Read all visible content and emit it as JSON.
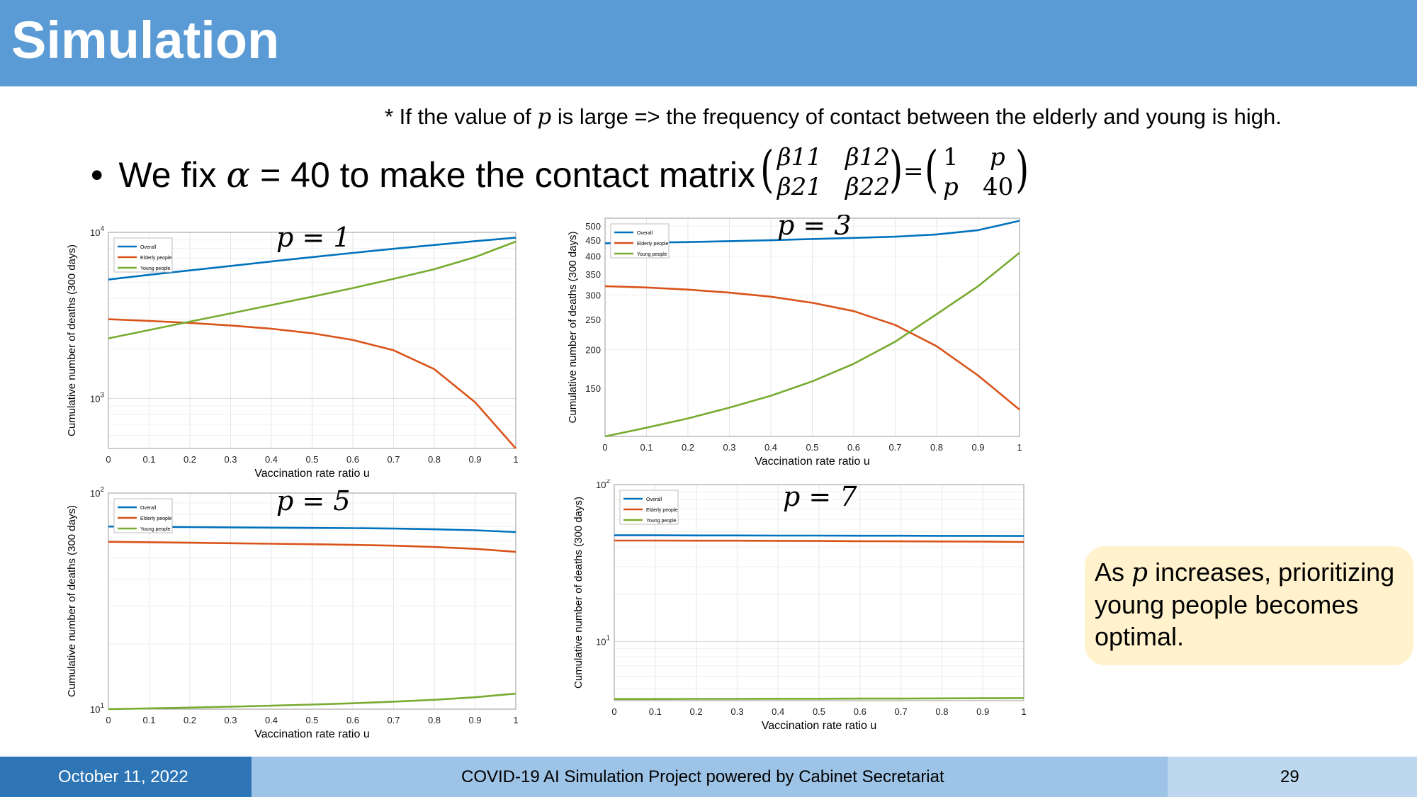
{
  "slide": {
    "title": "Simulation",
    "note_prefix": "* If the value of ",
    "note_var": "p",
    "note_suffix": " is large => the frequency of contact between the elderly and young is high.",
    "bullet_prefix": "We fix ",
    "bullet_var": "α",
    "bullet_suffix": " = 40 to make the contact matrix",
    "matrix": {
      "b11": "β11",
      "b12": "β12",
      "b21": "β21",
      "b22": "β22",
      "equals": "=",
      "m11": "1",
      "m12": "p",
      "m21": "p",
      "m22": "40"
    },
    "callout": {
      "prefix": "As ",
      "var": "p",
      "suffix": " increases, prioritizing young people becomes optimal."
    },
    "footer": {
      "date": "October 11, 2022",
      "center": "COVID-19 AI Simulation Project powered by Cabinet Secretariat",
      "page": "29"
    }
  },
  "colors": {
    "overall": "#0072bd",
    "elderly": "#d95319",
    "young": "#77ac30",
    "accent": "#5b9bd5"
  },
  "chart_data": [
    {
      "type": "line",
      "annotation": "p = 1",
      "xlabel": "Vaccination rate ratio u",
      "ylabel": "Cumulative number of deaths (300 days)",
      "yscale": "log",
      "xlim": [
        0,
        1
      ],
      "ylim": [
        500,
        10000
      ],
      "xticks": [
        "0",
        "0.1",
        "0.2",
        "0.3",
        "0.4",
        "0.5",
        "0.6",
        "0.7",
        "0.8",
        "0.9",
        "1"
      ],
      "yticks": [
        {
          "base": "10",
          "exp": "3",
          "value": 1000
        },
        {
          "base": "10",
          "exp": "4",
          "value": 10000
        }
      ],
      "grid": true,
      "legend_position": "top-left",
      "x": [
        0,
        0.1,
        0.2,
        0.3,
        0.4,
        0.5,
        0.6,
        0.7,
        0.8,
        0.9,
        1
      ],
      "series": [
        {
          "name": "Overall",
          "values": [
            5200,
            5550,
            5900,
            6280,
            6680,
            7100,
            7520,
            7960,
            8400,
            8850,
            9300
          ]
        },
        {
          "name": "Elderly people",
          "values": [
            3000,
            2930,
            2850,
            2750,
            2630,
            2470,
            2250,
            1950,
            1500,
            950,
            500
          ]
        },
        {
          "name": "Young people",
          "values": [
            2300,
            2580,
            2900,
            3250,
            3650,
            4100,
            4620,
            5250,
            6000,
            7100,
            8800
          ]
        }
      ]
    },
    {
      "type": "line",
      "annotation": "p = 3",
      "xlabel": "Vaccination rate ratio u",
      "ylabel": "Cumulative number of deaths (300 days)",
      "yscale": "log",
      "xlim": [
        0,
        1
      ],
      "ylim": [
        105,
        530
      ],
      "xticks": [
        "0",
        "0.1",
        "0.2",
        "0.3",
        "0.4",
        "0.5",
        "0.6",
        "0.7",
        "0.8",
        "0.9",
        "1"
      ],
      "yticks": [
        {
          "base": "150",
          "value": 150
        },
        {
          "base": "200",
          "value": 200
        },
        {
          "base": "250",
          "value": 250
        },
        {
          "base": "300",
          "value": 300
        },
        {
          "base": "350",
          "value": 350
        },
        {
          "base": "400",
          "value": 400
        },
        {
          "base": "450",
          "value": 450
        },
        {
          "base": "500",
          "value": 500
        }
      ],
      "grid": true,
      "legend_position": "top-left",
      "x": [
        0,
        0.1,
        0.2,
        0.3,
        0.4,
        0.5,
        0.6,
        0.7,
        0.8,
        0.9,
        1
      ],
      "series": [
        {
          "name": "Overall",
          "values": [
            440,
            442,
            444,
            447,
            450,
            454,
            458,
            462,
            470,
            485,
            520
          ]
        },
        {
          "name": "Elderly people",
          "values": [
            320,
            317,
            312,
            305,
            296,
            283,
            266,
            240,
            205,
            165,
            128
          ]
        },
        {
          "name": "Young people",
          "values": [
            105,
            112,
            120,
            130,
            142,
            158,
            180,
            212,
            260,
            320,
            410
          ]
        }
      ]
    },
    {
      "type": "line",
      "annotation": "p = 5",
      "xlabel": "Vaccination rate ratio u",
      "ylabel": "Cumulative number of deaths (300 days)",
      "yscale": "log",
      "xlim": [
        0,
        1
      ],
      "ylim": [
        10,
        100
      ],
      "xticks": [
        "0",
        "0.1",
        "0.2",
        "0.3",
        "0.4",
        "0.5",
        "0.6",
        "0.7",
        "0.8",
        "0.9",
        "1"
      ],
      "yticks": [
        {
          "base": "10",
          "exp": "1",
          "value": 10
        },
        {
          "base": "10",
          "exp": "2",
          "value": 100
        }
      ],
      "grid": true,
      "legend_position": "top-left",
      "x": [
        0,
        0.1,
        0.2,
        0.3,
        0.4,
        0.5,
        0.6,
        0.7,
        0.8,
        0.9,
        1
      ],
      "series": [
        {
          "name": "Overall",
          "values": [
            70,
            69.8,
            69.6,
            69.4,
            69.2,
            69,
            68.8,
            68.5,
            68,
            67.3,
            66
          ]
        },
        {
          "name": "Elderly people",
          "values": [
            59.5,
            59.2,
            58.9,
            58.6,
            58.3,
            58,
            57.6,
            57.1,
            56.3,
            55.2,
            53.5
          ]
        },
        {
          "name": "Young people",
          "values": [
            10,
            10.08,
            10.17,
            10.27,
            10.38,
            10.5,
            10.65,
            10.83,
            11.05,
            11.35,
            11.8
          ]
        }
      ]
    },
    {
      "type": "line",
      "annotation": "p = 7",
      "xlabel": "Vaccination rate ratio u",
      "ylabel": "Cumulative number of deaths (300 days)",
      "yscale": "log",
      "xlim": [
        0,
        1
      ],
      "ylim": [
        4.2,
        100
      ],
      "xticks": [
        "0",
        "0.1",
        "0.2",
        "0.3",
        "0.4",
        "0.5",
        "0.6",
        "0.7",
        "0.8",
        "0.9",
        "1"
      ],
      "yticks": [
        {
          "base": "10",
          "exp": "1",
          "value": 10
        },
        {
          "base": "10",
          "exp": "2",
          "value": 100
        }
      ],
      "grid": true,
      "legend_position": "top-left",
      "x": [
        0,
        0.1,
        0.2,
        0.3,
        0.4,
        0.5,
        0.6,
        0.7,
        0.8,
        0.9,
        1
      ],
      "series": [
        {
          "name": "Overall",
          "values": [
            47.5,
            47.5,
            47.4,
            47.4,
            47.3,
            47.3,
            47.2,
            47.2,
            47.1,
            47.1,
            47
          ]
        },
        {
          "name": "Elderly people",
          "values": [
            44,
            44,
            43.9,
            43.9,
            43.8,
            43.7,
            43.6,
            43.5,
            43.4,
            43.3,
            43.1
          ]
        },
        {
          "name": "Young people",
          "values": [
            4.3,
            4.3,
            4.31,
            4.31,
            4.32,
            4.32,
            4.33,
            4.33,
            4.34,
            4.35,
            4.36
          ]
        }
      ]
    }
  ]
}
